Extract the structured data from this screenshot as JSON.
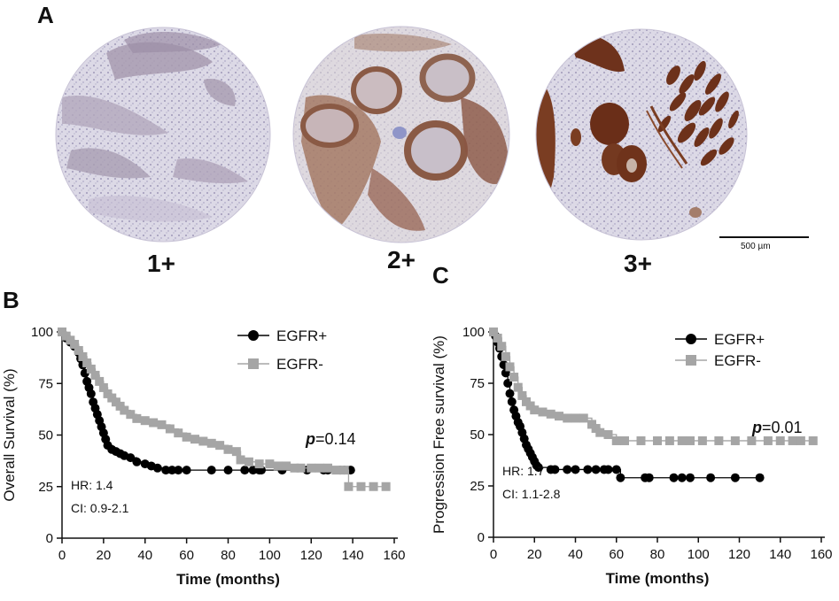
{
  "panel_labels": {
    "a": "A",
    "b": "B",
    "c": "C"
  },
  "ihc": {
    "scores": [
      "1+",
      "2+",
      "3+"
    ],
    "scale_bar": "500 µm",
    "colors": {
      "background": "#e8e6ef",
      "hematoxylin": "#a9a3c4",
      "dab": "#7a3d22"
    }
  },
  "chart_data": [
    {
      "type": "line",
      "panel": "B",
      "xlabel": "Time (months)",
      "ylabel": "Overall Survival (%)",
      "xlim": [
        0,
        160
      ],
      "ylim": [
        0,
        100
      ],
      "xticks": [
        0,
        20,
        40,
        60,
        80,
        100,
        120,
        140,
        160
      ],
      "yticks": [
        0,
        25,
        50,
        75,
        100
      ],
      "legend_position": "top-right",
      "annotations": {
        "hr": "HR: 1.4",
        "ci": "CI: 0.9-2.1",
        "p_italic": "p",
        "p_value": "=0.14"
      },
      "series": [
        {
          "name": "EGFR+",
          "color": "#000000",
          "marker": "circle",
          "x": [
            0,
            2,
            4,
            6,
            8,
            9,
            10,
            11,
            12,
            13,
            14,
            15,
            16,
            17,
            18,
            19,
            20,
            21,
            22,
            24,
            26,
            28,
            30,
            33,
            36,
            40,
            43,
            46,
            50,
            53,
            56,
            60,
            72,
            80,
            88,
            92,
            95,
            96,
            106,
            118,
            126,
            128,
            134,
            136,
            139
          ],
          "y": [
            100,
            97,
            95,
            93,
            90,
            87,
            84,
            80,
            76,
            73,
            70,
            66,
            63,
            60,
            57,
            54,
            51,
            48,
            45,
            43,
            42,
            41,
            40,
            39,
            37,
            36,
            35,
            34,
            33,
            33,
            33,
            33,
            33,
            33,
            33,
            33,
            33,
            33,
            33,
            33,
            33,
            33,
            33,
            33,
            33
          ]
        },
        {
          "name": "EGFR-",
          "color": "#a5a5a5",
          "marker": "square",
          "x": [
            0,
            2,
            4,
            6,
            8,
            10,
            12,
            14,
            16,
            18,
            20,
            22,
            24,
            26,
            28,
            30,
            33,
            36,
            40,
            44,
            48,
            52,
            56,
            60,
            64,
            68,
            72,
            76,
            80,
            84,
            86,
            90,
            95,
            100,
            104,
            108,
            112,
            115,
            120,
            124,
            128,
            132,
            136,
            138,
            144,
            150,
            156
          ],
          "y": [
            100,
            98,
            96,
            94,
            91,
            88,
            85,
            82,
            79,
            76,
            73,
            70,
            68,
            66,
            64,
            62,
            60,
            58,
            57,
            56,
            55,
            53,
            51,
            49,
            48,
            47,
            46,
            45,
            43,
            42,
            38,
            37,
            36,
            36,
            35,
            35,
            34,
            34,
            34,
            34,
            34,
            33,
            33,
            25,
            25,
            25,
            25
          ]
        }
      ]
    },
    {
      "type": "line",
      "panel": "C",
      "xlabel": "Time (months)",
      "ylabel": "Progression Free survival (%)",
      "xlim": [
        0,
        160
      ],
      "ylim": [
        0,
        100
      ],
      "xticks": [
        0,
        20,
        40,
        60,
        80,
        100,
        120,
        140,
        160
      ],
      "yticks": [
        0,
        25,
        50,
        75,
        100
      ],
      "legend_position": "top-right",
      "annotations": {
        "hr": "HR: 1.7",
        "ci": "CI: 1.1-2.8",
        "p_italic": "p",
        "p_value": "=0.01"
      },
      "series": [
        {
          "name": "EGFR+",
          "color": "#000000",
          "marker": "circle",
          "x": [
            0,
            1,
            2,
            3,
            4,
            5,
            6,
            7,
            8,
            9,
            10,
            11,
            12,
            13,
            14,
            15,
            16,
            17,
            18,
            19,
            20,
            21,
            22,
            28,
            30,
            36,
            40,
            46,
            50,
            54,
            56,
            60,
            62,
            74,
            76,
            88,
            92,
            96,
            106,
            118,
            130
          ],
          "y": [
            100,
            98,
            95,
            92,
            88,
            84,
            80,
            75,
            70,
            66,
            62,
            59,
            56,
            54,
            51,
            48,
            45,
            43,
            41,
            39,
            37,
            35,
            34,
            33,
            33,
            33,
            33,
            33,
            33,
            33,
            33,
            33,
            29,
            29,
            29,
            29,
            29,
            29,
            29,
            29,
            29
          ]
        },
        {
          "name": "EGFR-",
          "color": "#a5a5a5",
          "marker": "square",
          "x": [
            0,
            2,
            4,
            6,
            8,
            10,
            12,
            14,
            16,
            18,
            20,
            24,
            28,
            32,
            36,
            40,
            44,
            48,
            50,
            52,
            56,
            60,
            64,
            72,
            80,
            86,
            92,
            96,
            102,
            110,
            118,
            126,
            134,
            140,
            146,
            150,
            156
          ],
          "y": [
            100,
            97,
            93,
            88,
            83,
            78,
            73,
            69,
            66,
            64,
            62,
            61,
            60,
            59,
            58,
            58,
            58,
            55,
            53,
            51,
            50,
            47,
            47,
            47,
            47,
            47,
            47,
            47,
            47,
            47,
            47,
            47,
            47,
            47,
            47,
            47,
            47
          ]
        }
      ]
    }
  ]
}
